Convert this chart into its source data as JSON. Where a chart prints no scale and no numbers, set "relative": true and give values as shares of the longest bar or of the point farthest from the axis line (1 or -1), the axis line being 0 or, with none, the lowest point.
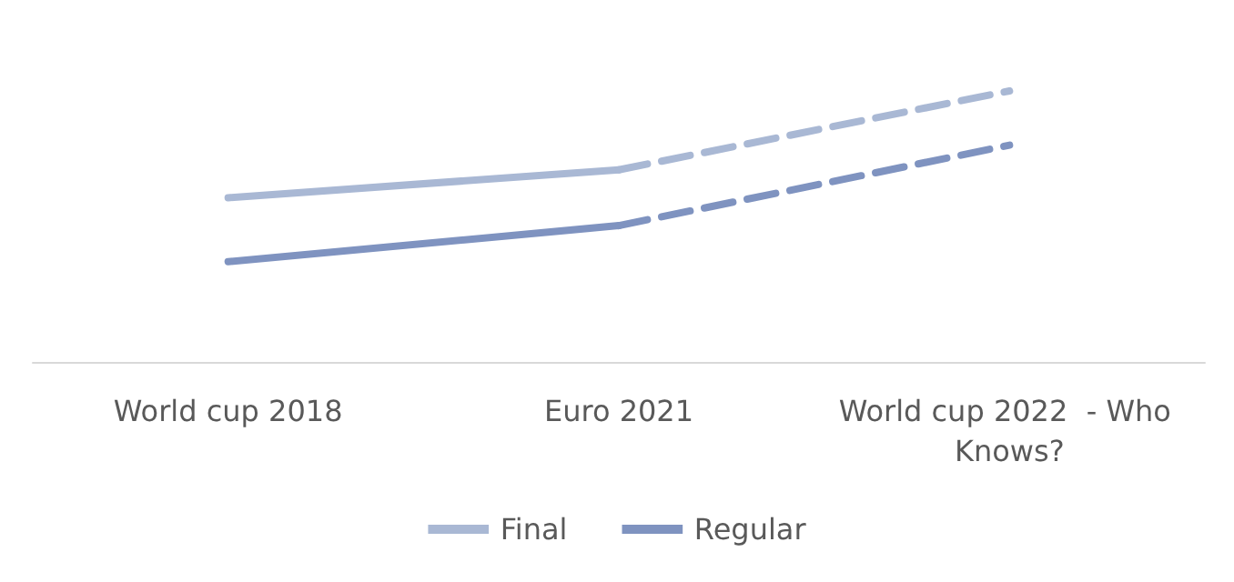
{
  "chart_data": {
    "type": "line",
    "relative": true,
    "categories": [
      "World cup 2018",
      "Euro 2021",
      "World cup 2022  - Who Knows?"
    ],
    "legend": "bottom",
    "marker": "none",
    "series": [
      {
        "name": "Final",
        "color": "#a9b8d4",
        "values": [
          0.606,
          0.709,
          null
        ],
        "line_style": "solid"
      },
      {
        "name": "Regular",
        "color": "#7f93c0",
        "values": [
          0.37,
          0.503,
          null
        ],
        "line_style": "solid"
      },
      {
        "color": "#a9b8d4",
        "values": [
          null,
          0.709,
          1
        ],
        "line_style": "dashed"
      },
      {
        "color": "#7f93c0",
        "values": [
          null,
          0.503,
          0.8
        ],
        "line_style": "dashed"
      }
    ]
  }
}
